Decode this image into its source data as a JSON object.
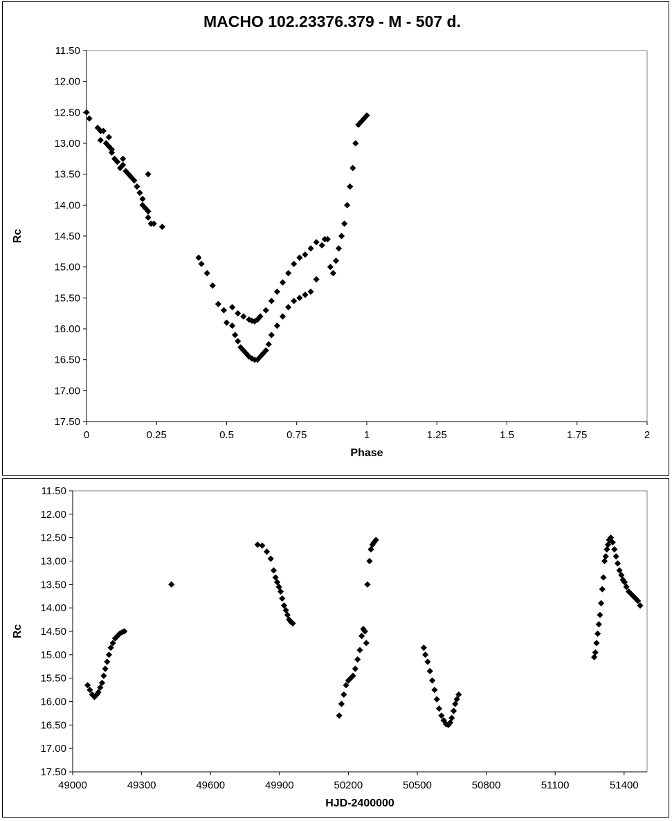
{
  "chart_data": [
    {
      "type": "scatter",
      "title": "MACHO 102.23376.379 - M - 507 d.",
      "xlabel": "Phase",
      "ylabel": "Rc",
      "xlim": [
        0,
        2
      ],
      "ylim": [
        11.5,
        17.5
      ],
      "y_inverted": true,
      "xticks": [
        "0",
        "0.25",
        "0.5",
        "0.75",
        "1",
        "1.25",
        "1.5",
        "1.75",
        "2"
      ],
      "yticks": [
        "11.50",
        "12.00",
        "12.50",
        "13.00",
        "13.50",
        "14.00",
        "14.50",
        "15.00",
        "15.50",
        "16.00",
        "16.50",
        "17.00",
        "17.50"
      ],
      "marker": "diamond",
      "color": "#000000",
      "series": [
        {
          "x": [
            0.0,
            0.01,
            0.04,
            0.05,
            0.05,
            0.06,
            0.07,
            0.08,
            0.08,
            0.09,
            0.09,
            0.1,
            0.11,
            0.12,
            0.13,
            0.13,
            0.14,
            0.15,
            0.16,
            0.17,
            0.18,
            0.19,
            0.2,
            0.2,
            0.21,
            0.22,
            0.22,
            0.23,
            0.24,
            0.27,
            0.22,
            0.4,
            0.41,
            0.43,
            0.45,
            0.47,
            0.49,
            0.5,
            0.52,
            0.53,
            0.54,
            0.55,
            0.56,
            0.57,
            0.58,
            0.59,
            0.6,
            0.61,
            0.62,
            0.63,
            0.64,
            0.65,
            0.66,
            0.68,
            0.7,
            0.72,
            0.74,
            0.76,
            0.78,
            0.8,
            0.82,
            0.85,
            0.52,
            0.54,
            0.56,
            0.58,
            0.59,
            0.6,
            0.61,
            0.62,
            0.64,
            0.66,
            0.68,
            0.7,
            0.72,
            0.74,
            0.76,
            0.78,
            0.8,
            0.82,
            0.84,
            0.86,
            0.87,
            0.88,
            0.89,
            0.9,
            0.91,
            0.92,
            0.93,
            0.94,
            0.95,
            0.96,
            0.97,
            0.98,
            0.99,
            1.0
          ],
          "y": [
            12.5,
            12.6,
            12.75,
            12.8,
            12.95,
            12.8,
            13.0,
            13.05,
            12.9,
            13.1,
            13.15,
            13.25,
            13.3,
            13.4,
            13.25,
            13.35,
            13.45,
            13.5,
            13.55,
            13.6,
            13.7,
            13.8,
            13.9,
            14.0,
            14.05,
            14.1,
            14.2,
            14.3,
            14.3,
            14.35,
            13.5,
            14.85,
            14.95,
            15.1,
            15.3,
            15.6,
            15.7,
            15.9,
            15.95,
            16.1,
            16.2,
            16.3,
            16.35,
            16.4,
            16.45,
            16.48,
            16.5,
            16.5,
            16.45,
            16.4,
            16.35,
            16.25,
            16.1,
            15.95,
            15.8,
            15.65,
            15.55,
            15.5,
            15.45,
            15.4,
            15.2,
            14.55,
            15.65,
            15.75,
            15.8,
            15.85,
            15.87,
            15.88,
            15.85,
            15.8,
            15.7,
            15.55,
            15.4,
            15.25,
            15.1,
            14.95,
            14.85,
            14.8,
            14.7,
            14.6,
            14.65,
            14.55,
            15.0,
            15.1,
            14.9,
            14.7,
            14.5,
            14.3,
            14.0,
            13.7,
            13.4,
            13.0,
            12.7,
            12.65,
            12.6,
            12.55
          ]
        }
      ]
    },
    {
      "type": "scatter",
      "xlabel": "HJD-2400000",
      "ylabel": "Rc",
      "xlim": [
        49000,
        51500
      ],
      "ylim": [
        11.5,
        17.5
      ],
      "y_inverted": true,
      "xticks": [
        "49000",
        "49300",
        "49600",
        "49900",
        "50200",
        "50500",
        "50800",
        "51100",
        "51400"
      ],
      "yticks": [
        "11.50",
        "12.00",
        "12.50",
        "13.00",
        "13.50",
        "14.00",
        "14.50",
        "15.00",
        "15.50",
        "16.00",
        "16.50",
        "17.00",
        "17.50"
      ],
      "marker": "diamond",
      "color": "#000000",
      "series": [
        {
          "x": [
            49065,
            49075,
            49085,
            49095,
            49105,
            49112,
            49120,
            49128,
            49135,
            49142,
            49150,
            49158,
            49166,
            49175,
            49185,
            49195,
            49205,
            49215,
            49225,
            49430,
            49805,
            49825,
            49845,
            49862,
            49875,
            49883,
            49890,
            49898,
            49905,
            49912,
            49920,
            49928,
            49935,
            49942,
            49950,
            49958,
            50160,
            50170,
            50180,
            50190,
            50200,
            50210,
            50220,
            50230,
            50240,
            50250,
            50258,
            50265,
            50272,
            50278,
            50283,
            50292,
            50298,
            50305,
            50312,
            50320,
            50528,
            50535,
            50545,
            50555,
            50565,
            50575,
            50585,
            50595,
            50605,
            50615,
            50625,
            50635,
            50643,
            50650,
            50658,
            50665,
            50672,
            50680,
            51270,
            51275,
            51280,
            51285,
            51290,
            51295,
            51300,
            51305,
            51310,
            51315,
            51320,
            51325,
            51330,
            51335,
            51342,
            51350,
            51358,
            51365,
            51372,
            51380,
            51388,
            51395,
            51402,
            51410,
            51420,
            51430,
            51440,
            51450,
            51460,
            51470
          ],
          "y": [
            15.65,
            15.75,
            15.85,
            15.9,
            15.85,
            15.8,
            15.7,
            15.6,
            15.45,
            15.3,
            15.15,
            15.0,
            14.85,
            14.75,
            14.65,
            14.6,
            14.55,
            14.52,
            14.5,
            13.5,
            12.65,
            12.67,
            12.8,
            12.95,
            13.2,
            13.35,
            13.45,
            13.55,
            13.65,
            13.8,
            13.95,
            14.05,
            14.15,
            14.25,
            14.3,
            14.33,
            16.3,
            16.05,
            15.85,
            15.65,
            15.55,
            15.5,
            15.45,
            15.3,
            15.1,
            14.9,
            14.6,
            14.45,
            14.5,
            14.75,
            13.5,
            13.0,
            12.75,
            12.65,
            12.6,
            12.55,
            14.85,
            15.0,
            15.15,
            15.35,
            15.55,
            15.75,
            15.95,
            16.15,
            16.3,
            16.4,
            16.48,
            16.5,
            16.45,
            16.35,
            16.2,
            16.05,
            15.95,
            15.85,
            15.05,
            14.95,
            14.75,
            14.55,
            14.35,
            14.15,
            13.9,
            13.6,
            13.35,
            13.0,
            12.9,
            12.75,
            12.65,
            12.55,
            12.5,
            12.6,
            12.75,
            12.9,
            13.05,
            13.2,
            13.3,
            13.4,
            13.45,
            13.55,
            13.65,
            13.7,
            13.75,
            13.8,
            13.85,
            13.95
          ]
        }
      ]
    }
  ]
}
